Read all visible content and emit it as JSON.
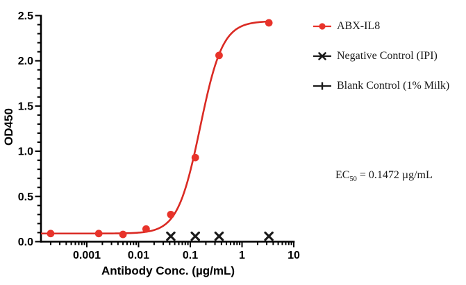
{
  "figure": {
    "background": "#ffffff",
    "axis_color": "#000000"
  },
  "legend": {
    "position": "right",
    "items": [
      {
        "label": "ABX-IL8",
        "marker": "circle-on-line",
        "color": "#e8332a"
      },
      {
        "label": "Negative Control (IPI)",
        "marker": "x-on-line",
        "color": "#1a1a1a"
      },
      {
        "label": "Blank Control (1% Milk)",
        "marker": "plus-on-line",
        "color": "#1a1a1a"
      }
    ]
  },
  "annotation": {
    "prefix": "EC",
    "subscript": "50",
    "rest": " = 0.1472 µg/mL",
    "full_text": "EC50 = 0.1472 µg/mL"
  },
  "chart_data": {
    "type": "scatter",
    "title": "",
    "xlabel": "Antibody Conc. (µg/mL)",
    "ylabel": "OD450",
    "x_scale": "log10",
    "xlim_log10": [
      -3.886,
      1
    ],
    "ylim": [
      0,
      2.5
    ],
    "y_major_step": 0.5,
    "y_minor_step": 0.1,
    "x_tick_values": [
      0.001,
      0.01,
      0.1,
      1,
      10
    ],
    "x_tick_labels": [
      "0.001",
      "0.01",
      "0.1",
      "1",
      "10"
    ],
    "y_tick_labels": [
      "0.0",
      "0.5",
      "1.0",
      "1.5",
      "2.0",
      "2.5"
    ],
    "grid": false,
    "legend_position": "right",
    "series": [
      {
        "name": "ABX-IL8",
        "marker": "circle",
        "color": "#e8332a",
        "x": [
          0.0002,
          0.0017,
          0.005,
          0.014,
          0.042,
          0.125,
          0.36,
          3.3
        ],
        "y": [
          0.09,
          0.09,
          0.08,
          0.14,
          0.3,
          0.93,
          2.06,
          2.42
        ]
      },
      {
        "name": "Negative Control (IPI)",
        "marker": "x",
        "color": "#1a1a1a",
        "x": [
          0.042,
          0.125,
          0.36,
          3.3
        ],
        "y": [
          0.06,
          0.06,
          0.06,
          0.06
        ]
      },
      {
        "name": "Blank Control (1% Milk)",
        "marker": "plus",
        "color": "#1a1a1a",
        "x": [],
        "y": [],
        "note": "markers not visibly distinct in plot area (overlap near baseline)"
      }
    ],
    "fit_curve": {
      "series": "ABX-IL8",
      "model": "4PL",
      "color": "#da2a23",
      "params_render": {
        "bottom": 0.09,
        "top": 2.44,
        "ec50": 0.155,
        "hill": 2.0
      },
      "x_range": [
        0.00013,
        3.3
      ]
    },
    "ec50_label": "EC50 = 0.1472 µg/mL"
  }
}
